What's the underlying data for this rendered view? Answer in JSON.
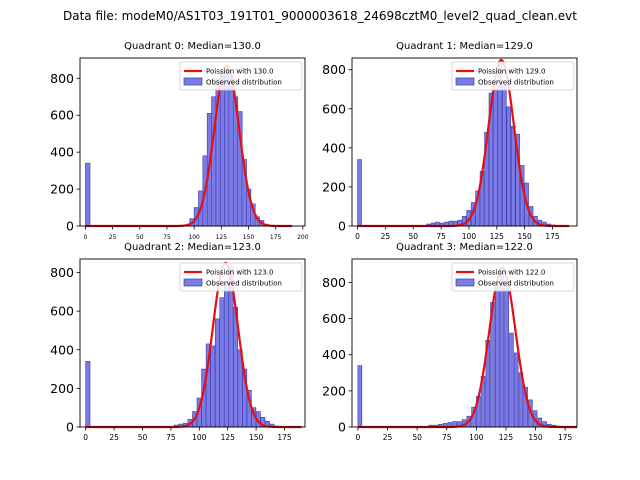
{
  "figure_title": "Data file: modeM0/AS1T03_191T01_9000003618_24698cztM0_level2_quad_clean.evt",
  "colors": {
    "bar_fill": "#7b7be6",
    "bar_edge": "#3d3db0",
    "curve": "#e41010",
    "axis": "#000000"
  },
  "chart_data": [
    {
      "type": "bar",
      "title": "Quadrant 0: Median=130.0",
      "legend": {
        "curve_label": "Poission with 130.0",
        "bars_label": "Observed distribution",
        "placement": "top-right"
      },
      "xlim": [
        -5,
        202
      ],
      "ylim": [
        0,
        910
      ],
      "xticks": [
        0,
        25,
        50,
        75,
        100,
        125,
        150,
        175,
        200
      ],
      "yticks": [
        0,
        200,
        400,
        600,
        800
      ],
      "bin_width": 4.2,
      "bar_starts": [
        0,
        96,
        100,
        104,
        108,
        112,
        116,
        120,
        124,
        128,
        132,
        136,
        140,
        144,
        148,
        152,
        156,
        160,
        164
      ],
      "values": [
        340,
        40,
        100,
        190,
        380,
        610,
        700,
        800,
        830,
        870,
        810,
        700,
        620,
        360,
        200,
        120,
        50,
        30,
        10
      ],
      "poisson": {
        "mean": 130.0,
        "peak": 870,
        "x_start": 0,
        "x_end": 190
      }
    },
    {
      "type": "bar",
      "title": "Quadrant 1: Median=129.0",
      "legend": {
        "curve_label": "Poission with 129.0",
        "bars_label": "Observed distribution",
        "placement": "top-right"
      },
      "xlim": [
        -5,
        197
      ],
      "ylim": [
        0,
        860
      ],
      "xticks": [
        0,
        25,
        50,
        75,
        100,
        125,
        150,
        175
      ],
      "yticks": [
        0,
        200,
        400,
        600,
        800
      ],
      "bin_width": 3.5,
      "bar_starts": [
        0,
        62,
        66,
        70,
        74,
        78,
        82,
        86,
        90,
        94,
        98,
        102,
        106,
        110,
        114,
        118,
        122,
        126,
        130,
        134,
        138,
        142,
        146,
        150,
        154,
        158,
        162,
        166,
        170,
        174
      ],
      "values": [
        340,
        10,
        15,
        20,
        15,
        20,
        25,
        25,
        30,
        50,
        80,
        120,
        180,
        280,
        480,
        680,
        700,
        830,
        720,
        610,
        510,
        470,
        310,
        220,
        100,
        50,
        30,
        20,
        10,
        5
      ],
      "poisson": {
        "mean": 129.0,
        "peak": 850,
        "x_start": 0,
        "x_end": 190
      }
    },
    {
      "type": "bar",
      "title": "Quadrant 2: Median=123.0",
      "legend": {
        "curve_label": "Poission with 123.0",
        "bars_label": "Observed distribution",
        "placement": "top-right"
      },
      "xlim": [
        -5,
        193
      ],
      "ylim": [
        0,
        870
      ],
      "xticks": [
        0,
        25,
        50,
        75,
        100,
        125,
        150,
        175
      ],
      "yticks": [
        0,
        200,
        400,
        600,
        800
      ],
      "bin_width": 3.8,
      "bar_starts": [
        0,
        78,
        82,
        86,
        90,
        94,
        98,
        102,
        106,
        110,
        114,
        118,
        122,
        126,
        130,
        134,
        138,
        142,
        146,
        150,
        154,
        158,
        162,
        166
      ],
      "values": [
        340,
        10,
        15,
        20,
        40,
        80,
        150,
        300,
        430,
        420,
        560,
        670,
        750,
        830,
        620,
        400,
        300,
        190,
        100,
        80,
        50,
        30,
        15,
        5
      ],
      "poisson": {
        "mean": 123.0,
        "peak": 850,
        "x_start": 0,
        "x_end": 190
      }
    },
    {
      "type": "bar",
      "title": "Quadrant 3: Median=122.0",
      "legend": {
        "curve_label": "Poission with 122.0",
        "bars_label": "Observed distribution",
        "placement": "top-right"
      },
      "xlim": [
        -5,
        185
      ],
      "ylim": [
        0,
        930
      ],
      "xticks": [
        0,
        25,
        50,
        75,
        100,
        125,
        150,
        175
      ],
      "yticks": [
        0,
        200,
        400,
        600,
        800
      ],
      "bin_width": 3.3,
      "bar_starts": [
        0,
        60,
        64,
        68,
        72,
        76,
        80,
        84,
        88,
        92,
        96,
        100,
        104,
        108,
        112,
        116,
        120,
        124,
        128,
        132,
        136,
        140,
        144,
        148,
        152,
        156,
        160,
        164,
        168
      ],
      "values": [
        340,
        10,
        10,
        15,
        20,
        25,
        30,
        30,
        40,
        60,
        110,
        170,
        280,
        480,
        690,
        780,
        850,
        790,
        520,
        410,
        300,
        220,
        150,
        90,
        50,
        30,
        15,
        10,
        5
      ],
      "poisson": {
        "mean": 122.0,
        "peak": 880,
        "x_start": 0,
        "x_end": 185
      }
    }
  ]
}
